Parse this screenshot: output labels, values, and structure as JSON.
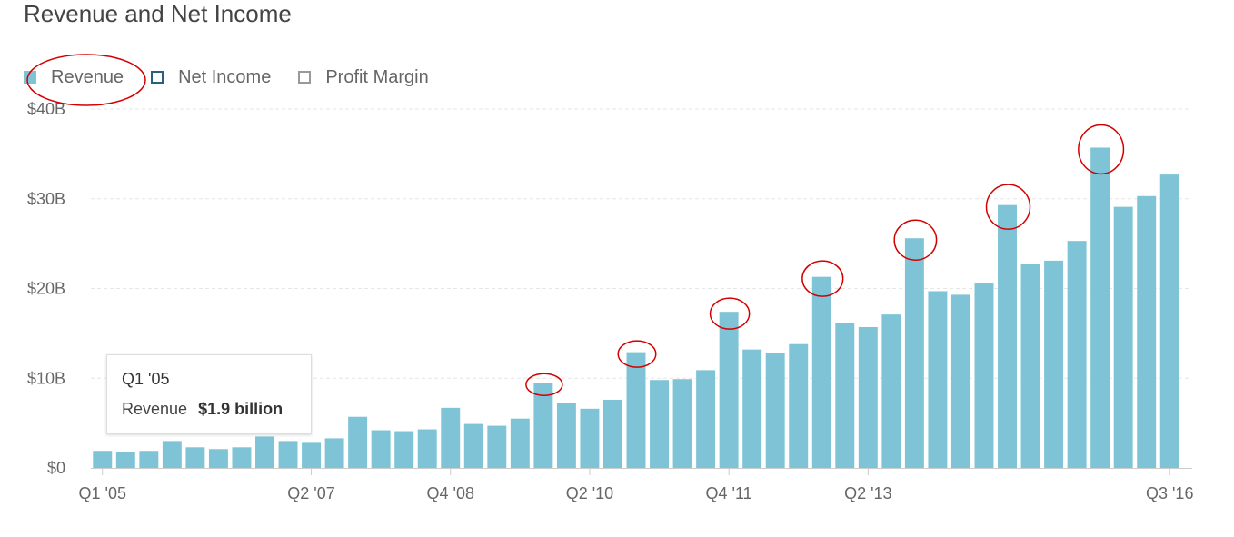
{
  "title": "Revenue and Net Income",
  "legend": [
    {
      "label": "Revenue",
      "swatch": "filled",
      "color": "#7ec4d6"
    },
    {
      "label": "Net Income",
      "swatch": "outline",
      "color": "#2a5f7e"
    },
    {
      "label": "Profit Margin",
      "swatch": "outline",
      "color": "#999999"
    }
  ],
  "tooltip": {
    "period": "Q1 '05",
    "series": "Revenue",
    "value": "$1.9 billion"
  },
  "annotation_color": "#d40000",
  "chart_data": {
    "type": "bar",
    "title": "Revenue and Net Income",
    "x_tick_labels": [
      "Q1 '05",
      "Q2 '07",
      "Q4 '08",
      "Q2 '10",
      "Q4 '11",
      "Q2 '13",
      "Q3 '16"
    ],
    "y_tick_labels": [
      "$0",
      "$10B",
      "$20B",
      "$30B",
      "$40B"
    ],
    "ylim": [
      0,
      40
    ],
    "y_unit": "billion USD",
    "grid": true,
    "legend_position": "top-left",
    "categories": [
      "Q1 '05",
      "Q2 '05",
      "Q3 '05",
      "Q4 '05",
      "Q1 '06",
      "Q2 '06",
      "Q3 '06",
      "Q4 '06",
      "Q1 '07",
      "Q2 '07",
      "Q3 '07",
      "Q4 '07",
      "Q1 '08",
      "Q2 '08",
      "Q3 '08",
      "Q4 '08",
      "Q1 '09",
      "Q2 '09",
      "Q3 '09",
      "Q4 '09",
      "Q1 '10",
      "Q2 '10",
      "Q3 '10",
      "Q4 '10",
      "Q1 '11",
      "Q2 '11",
      "Q3 '11",
      "Q4 '11",
      "Q1 '12",
      "Q2 '12",
      "Q3 '12",
      "Q4 '12",
      "Q1 '13",
      "Q2 '13",
      "Q3 '13",
      "Q4 '13",
      "Q1 '14",
      "Q2 '14",
      "Q3 '14",
      "Q4 '14",
      "Q1 '15",
      "Q2 '15",
      "Q3 '15",
      "Q4 '15",
      "Q1 '16",
      "Q2 '16",
      "Q3 '16"
    ],
    "series": [
      {
        "name": "Revenue",
        "color": "#7ec4d6",
        "values": [
          1.9,
          1.8,
          1.9,
          3.0,
          2.3,
          2.1,
          2.3,
          3.5,
          3.0,
          2.9,
          3.3,
          5.7,
          4.2,
          4.1,
          4.3,
          6.7,
          4.9,
          4.7,
          5.5,
          9.5,
          7.2,
          6.6,
          7.6,
          12.9,
          9.8,
          9.9,
          10.9,
          17.4,
          13.2,
          12.8,
          13.8,
          21.3,
          16.1,
          15.7,
          17.1,
          25.6,
          19.7,
          19.3,
          20.6,
          29.3,
          22.7,
          23.1,
          25.3,
          35.7,
          29.1,
          30.3,
          32.7
        ]
      }
    ],
    "highlighted_categories": [
      "Q4 '09",
      "Q4 '10",
      "Q4 '11",
      "Q4 '12",
      "Q4 '13",
      "Q4 '14",
      "Q4 '15"
    ]
  }
}
